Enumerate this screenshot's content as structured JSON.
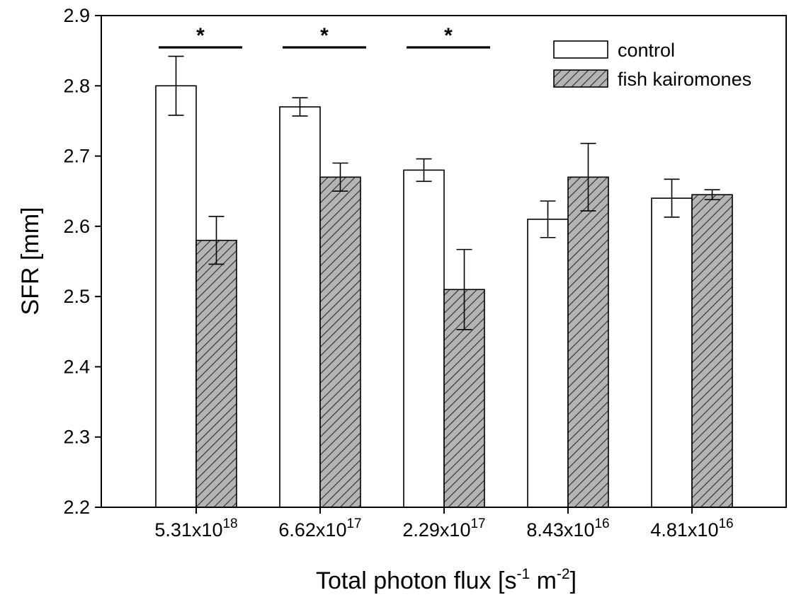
{
  "chart_data": {
    "type": "bar",
    "title": "",
    "xlabel": "Total photon flux [s-1 m-2]",
    "ylabel": "SFR [mm]",
    "ylim": [
      2.2,
      2.9
    ],
    "yticks": [
      "2.2",
      "2.3",
      "2.4",
      "2.5",
      "2.6",
      "2.7",
      "2.8",
      "2.9"
    ],
    "categories": [
      {
        "base": "5.31x10",
        "exp": "18"
      },
      {
        "base": "6.62x10",
        "exp": "17"
      },
      {
        "base": "2.29x10",
        "exp": "17"
      },
      {
        "base": "8.43x10",
        "exp": "16"
      },
      {
        "base": "4.81x10",
        "exp": "16"
      }
    ],
    "series": [
      {
        "name": "control",
        "values": [
          2.8,
          2.77,
          2.68,
          2.61,
          2.64
        ],
        "errors": [
          0.042,
          0.013,
          0.016,
          0.026,
          0.027
        ],
        "fill": "#ffffff"
      },
      {
        "name": "fish kairomones",
        "values": [
          2.58,
          2.67,
          2.51,
          2.67,
          2.645
        ],
        "errors": [
          0.034,
          0.02,
          0.057,
          0.048,
          0.007
        ],
        "fill": "#b0b0b0"
      }
    ],
    "significance": [
      {
        "category": 0,
        "label": "*"
      },
      {
        "category": 1,
        "label": "*"
      },
      {
        "category": 2,
        "label": "*"
      }
    ],
    "legend": {
      "position": "top-right"
    },
    "grid": false
  }
}
